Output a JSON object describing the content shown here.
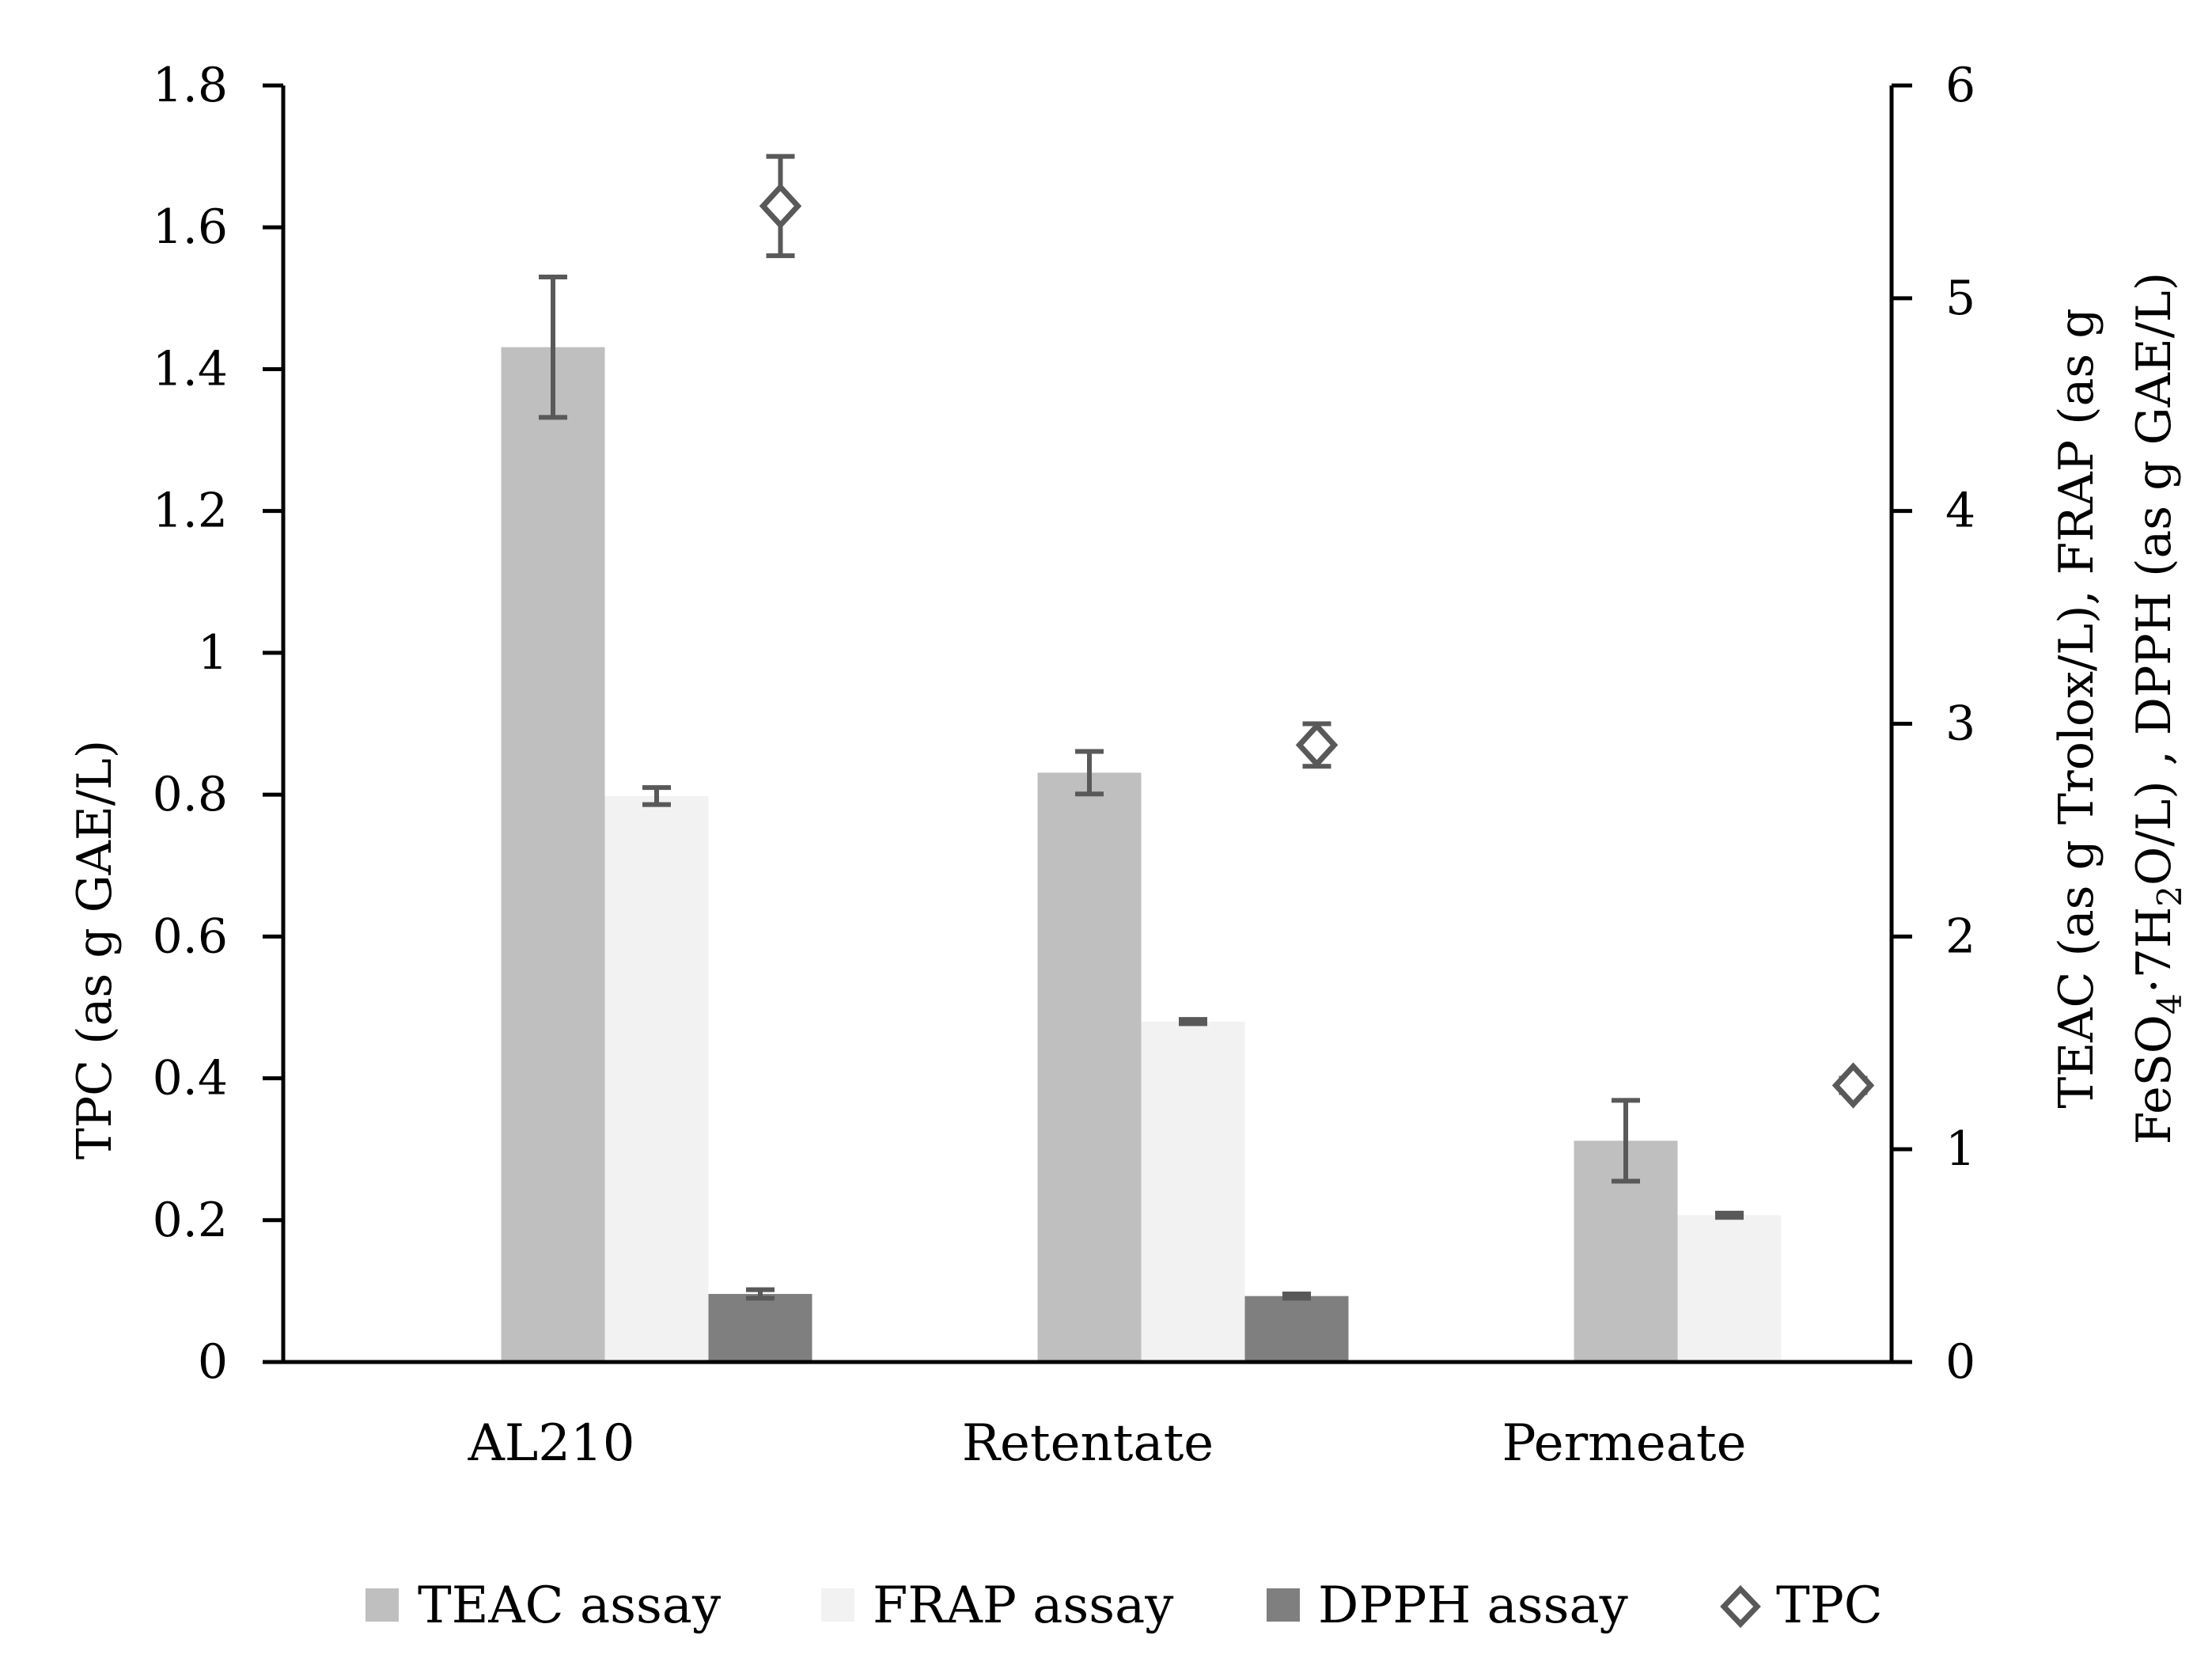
{
  "chart_data": {
    "type": "bar",
    "categories": [
      "AL210",
      "Retentate",
      "Permeate"
    ],
    "primary_axis": {
      "label": "TPC (as g GAE/L)",
      "ylim": [
        0,
        1.8
      ],
      "ticks": [
        0,
        0.2,
        0.4,
        0.6,
        0.8,
        1,
        1.2,
        1.4,
        1.6,
        1.8
      ],
      "tick_labels": [
        "0",
        "0.2",
        "0.4",
        "0.6",
        "0.8",
        "1",
        "1.2",
        "1.4",
        "1.6",
        "1.8"
      ]
    },
    "secondary_axis": {
      "label_line1": "TEAC (as g Trolox/L), FRAP (as g",
      "label_line2": "FeSO",
      "label_line2_sub1": "4",
      "label_line2_mid": "·7H",
      "label_line2_sub2": "2",
      "label_line2_end": "O/L) , DPPH (as g GAE/L)",
      "ylim": [
        0,
        6
      ],
      "ticks": [
        0,
        1,
        2,
        3,
        4,
        5,
        6
      ],
      "tick_labels": [
        "0",
        "1",
        "2",
        "3",
        "4",
        "5",
        "6"
      ]
    },
    "series": [
      {
        "name": "TEAC assay",
        "axis": "secondary",
        "kind": "bar",
        "color": "#bfbfbf",
        "values": [
          4.77,
          2.77,
          1.04
        ],
        "errors": [
          0.33,
          0.1,
          0.19
        ]
      },
      {
        "name": "FRAP assay",
        "axis": "secondary",
        "kind": "bar",
        "color": "#f2f2f2",
        "values": [
          2.66,
          1.6,
          0.69
        ],
        "errors": [
          0.04,
          0.01,
          0.01
        ]
      },
      {
        "name": "DPPH assay",
        "axis": "secondary",
        "kind": "bar",
        "color": "#7f7f7f",
        "values": [
          0.32,
          0.31,
          0
        ],
        "errors": [
          0.02,
          0.01,
          0
        ]
      },
      {
        "name": "TPC",
        "axis": "primary",
        "kind": "marker",
        "color": "#595959",
        "values": [
          1.63,
          0.87,
          0.39
        ],
        "errors": [
          0.07,
          0.03,
          0.01
        ]
      }
    ],
    "legend": [
      "TEAC assay",
      "FRAP assay",
      "DPPH assay",
      "TPC"
    ],
    "legend_position": "bottom"
  }
}
